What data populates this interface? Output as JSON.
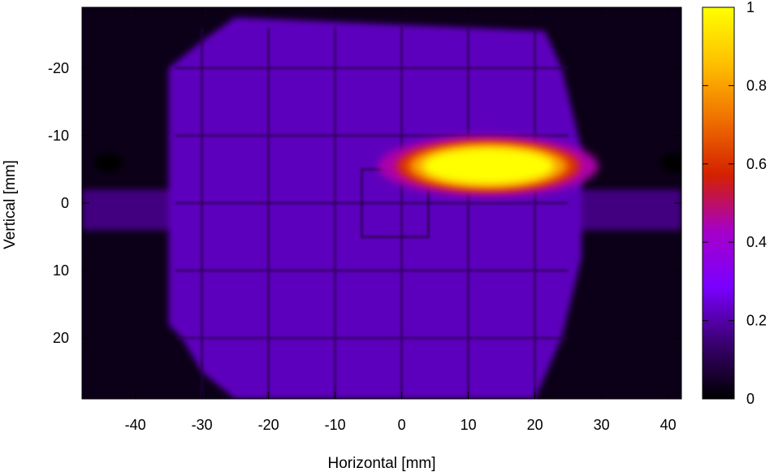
{
  "chart_data": {
    "type": "heatmap",
    "title": "",
    "xlabel": "Horizontal [mm]",
    "ylabel": "Vertical [mm]",
    "xlim": [
      -48,
      42
    ],
    "ylim": [
      -29,
      29
    ],
    "y_inverted": true,
    "x_ticks": [
      -40,
      -30,
      -20,
      -10,
      0,
      10,
      20,
      30,
      40
    ],
    "x_tick_labels": [
      "-40",
      "-30",
      "-20",
      "-10",
      "0",
      "10",
      "20",
      "30",
      "40"
    ],
    "y_ticks": [
      -20,
      -10,
      0,
      10,
      20
    ],
    "y_tick_labels": [
      "-20",
      "-10",
      "0",
      "10",
      "20"
    ],
    "colorbar": {
      "range": [
        0,
        1
      ],
      "ticks": [
        0,
        0.2,
        0.4,
        0.6,
        0.8,
        1
      ],
      "tick_labels": [
        "0",
        "0.2",
        "0.4",
        "0.6",
        "0.8",
        "1"
      ],
      "colormap": [
        "#000000",
        "#3a0070",
        "#7a00ff",
        "#a600c8",
        "#d42000",
        "#f07000",
        "#ffc000",
        "#ffff00"
      ]
    },
    "features": {
      "background_level": 0.03,
      "plate_level": 0.22,
      "plate_polygon": [
        [
          -35,
          18
        ],
        [
          -35,
          -20
        ],
        [
          -30,
          -24
        ],
        [
          -25,
          -27.5
        ],
        [
          21.5,
          -25.5
        ],
        [
          24,
          -20
        ],
        [
          27,
          -8
        ],
        [
          27,
          8
        ],
        [
          24,
          20
        ],
        [
          20,
          29
        ],
        [
          -25,
          29
        ],
        [
          -30,
          25
        ],
        [
          -33,
          20
        ]
      ],
      "beam_band": {
        "y_center": 1,
        "half_width": 3,
        "level": 0.16
      },
      "hot_spot": {
        "x_center": 13,
        "y_center": -5.5,
        "x_half_width": 11,
        "y_half_width": 3,
        "peak": 1.0
      },
      "grid_lines_x": [
        -30,
        -20,
        -10,
        0,
        10,
        20
      ],
      "grid_lines_y": [
        -20,
        -10,
        0,
        10,
        20
      ],
      "inner_square": {
        "x": [
          -6,
          4
        ],
        "y": [
          -5,
          5
        ]
      },
      "dark_spots": [
        [
          -44,
          -6
        ],
        [
          41,
          -6
        ]
      ]
    }
  }
}
